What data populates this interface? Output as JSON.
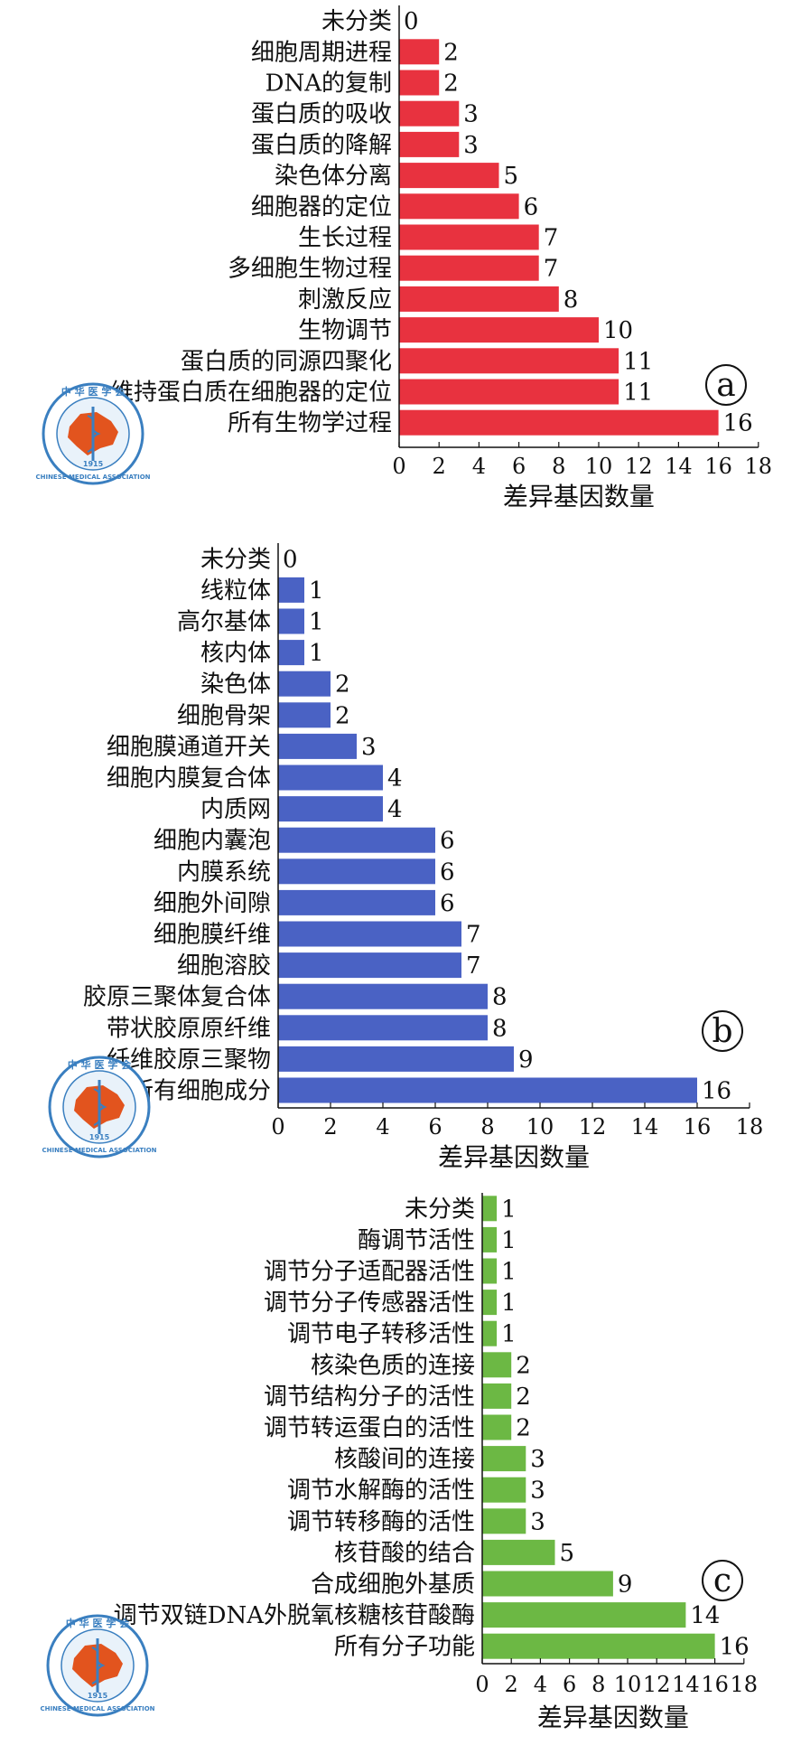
{
  "chart_data": [
    {
      "type": "bar",
      "orientation": "horizontal",
      "panel_label": "a",
      "categories": [
        "未分类",
        "细胞周期进程",
        "DNA的复制",
        "蛋白质的吸收",
        "蛋白质的降解",
        "染色体分离",
        "细胞器的定位",
        "生长过程",
        "多细胞生物过程",
        "刺激反应",
        "生物调节",
        "蛋白质的同源四聚化",
        "维持蛋白质在细胞器的定位",
        "所有生物学过程"
      ],
      "values": [
        0,
        2,
        2,
        3,
        3,
        5,
        6,
        7,
        7,
        8,
        10,
        11,
        11,
        16
      ],
      "value_labels": [
        "0",
        "2",
        "2",
        "3",
        "3",
        "5",
        "6",
        "7",
        "7",
        "8",
        "10",
        "11",
        "11",
        "16"
      ],
      "xlabel": "差异基因数量",
      "xlim": [
        0,
        18
      ],
      "xticks": [
        "0",
        "2",
        "4",
        "6",
        "8",
        "10",
        "12",
        "14",
        "16",
        "18"
      ],
      "color": "#e8323f",
      "grid": false
    },
    {
      "type": "bar",
      "orientation": "horizontal",
      "panel_label": "b",
      "categories": [
        "未分类",
        "线粒体",
        "高尔基体",
        "核内体",
        "染色体",
        "细胞骨架",
        "细胞膜通道开关",
        "细胞内膜复合体",
        "内质网",
        "细胞内囊泡",
        "内膜系统",
        "细胞外间隙",
        "细胞膜纤维",
        "细胞溶胶",
        "胶原三聚体复合体",
        "带状胶原原纤维",
        "纤维胶原三聚物",
        "所有细胞成分"
      ],
      "values": [
        0,
        1,
        1,
        1,
        2,
        2,
        3,
        4,
        4,
        6,
        6,
        6,
        7,
        7,
        8,
        8,
        9,
        16
      ],
      "value_labels": [
        "0",
        "1",
        "1",
        "1",
        "2",
        "2",
        "3",
        "4",
        "4",
        "6",
        "6",
        "6",
        "7",
        "7",
        "8",
        "8",
        "9",
        "16"
      ],
      "xlabel": "差异基因数量",
      "xlim": [
        0,
        18
      ],
      "xticks": [
        "0",
        "2",
        "4",
        "6",
        "8",
        "10",
        "12",
        "14",
        "16",
        "18"
      ],
      "color": "#4a62c4",
      "grid": false
    },
    {
      "type": "bar",
      "orientation": "horizontal",
      "panel_label": "c",
      "categories": [
        "未分类",
        "酶调节活性",
        "调节分子适配器活性",
        "调节分子传感器活性",
        "调节电子转移活性",
        "核染色质的连接",
        "调节结构分子的活性",
        "调节转运蛋白的活性",
        "核酸间的连接",
        "调节水解酶的活性",
        "调节转移酶的活性",
        "核苷酸的结合",
        "合成细胞外基质",
        "调节双链DNA外脱氧核糖核苷酸酶",
        "所有分子功能"
      ],
      "values": [
        1,
        1,
        1,
        1,
        1,
        2,
        2,
        2,
        3,
        3,
        3,
        5,
        9,
        14,
        16
      ],
      "value_labels": [
        "1",
        "1",
        "1",
        "1",
        "1",
        "2",
        "2",
        "2",
        "3",
        "3",
        "3",
        "5",
        "9",
        "14",
        "16"
      ],
      "xlabel": "差异基因数量",
      "xlim": [
        0,
        18
      ],
      "xticks": [
        "0",
        "2",
        "4",
        "6",
        "8",
        "10",
        "12",
        "14",
        "16",
        "18"
      ],
      "color": "#6cb844",
      "grid": false
    }
  ],
  "seal": {
    "top_text": "中 华 医 学 会",
    "bottom_text": "CHINESE MEDICAL ASSOCIATION",
    "year": "1915"
  }
}
